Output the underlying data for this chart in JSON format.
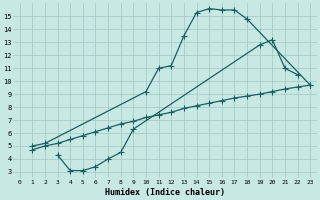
{
  "bg_color": "#c8e8e4",
  "grid_color": "#a0c8c4",
  "line_color": "#1a6060",
  "xlim": [
    -0.5,
    23.5
  ],
  "ylim": [
    2.5,
    16.0
  ],
  "xticks": [
    0,
    1,
    2,
    3,
    4,
    5,
    6,
    7,
    8,
    9,
    10,
    11,
    12,
    13,
    14,
    15,
    16,
    17,
    18,
    19,
    20,
    21,
    22,
    23
  ],
  "yticks": [
    3,
    4,
    5,
    6,
    7,
    8,
    9,
    10,
    11,
    12,
    13,
    14,
    15
  ],
  "xlabel": "Humidex (Indice chaleur)",
  "curve1_x": [
    1,
    2,
    10,
    11,
    12,
    13,
    14,
    15,
    16,
    17,
    18,
    23
  ],
  "curve1_y": [
    5.0,
    5.2,
    9.2,
    11.0,
    11.2,
    13.5,
    15.3,
    15.6,
    15.5,
    15.5,
    14.8,
    9.7
  ],
  "curve2_x": [
    3,
    4,
    5,
    6,
    7,
    8,
    9,
    19,
    20,
    21,
    22
  ],
  "curve2_y": [
    4.3,
    3.1,
    3.1,
    3.4,
    4.0,
    4.5,
    6.3,
    12.8,
    13.2,
    11.0,
    10.5
  ],
  "curve3_x": [
    1,
    2,
    3,
    4,
    5,
    6,
    7,
    8,
    9,
    10,
    11,
    12,
    13,
    14,
    15,
    16,
    17,
    18,
    19,
    20,
    21,
    22,
    23
  ],
  "curve3_y": [
    4.7,
    5.0,
    5.2,
    5.5,
    5.8,
    6.1,
    6.4,
    6.7,
    6.9,
    7.2,
    7.4,
    7.6,
    7.9,
    8.1,
    8.3,
    8.5,
    8.7,
    8.85,
    9.0,
    9.2,
    9.4,
    9.55,
    9.7
  ]
}
